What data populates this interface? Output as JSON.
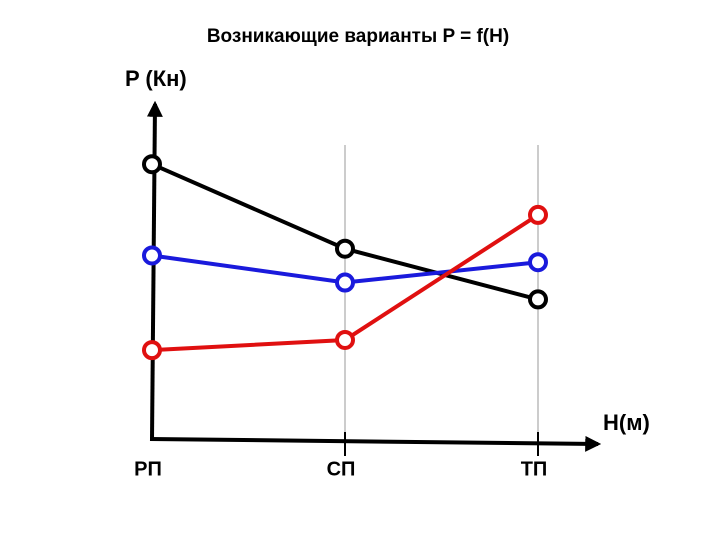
{
  "chart_data": {
    "type": "line",
    "title": "Возникающие варианты P = f(H)",
    "y_label": "P (Кн)",
    "x_label": "H(м)",
    "categories": [
      "РП",
      "СП",
      "ТП"
    ],
    "ylim": [
      0,
      100
    ],
    "series": [
      {
        "color": "#000000",
        "values": [
          81,
          56,
          41
        ]
      },
      {
        "color": "#1a1adc",
        "values": [
          54,
          46,
          52
        ]
      },
      {
        "color": "#e01010",
        "values": [
          26,
          29,
          66
        ]
      }
    ]
  }
}
